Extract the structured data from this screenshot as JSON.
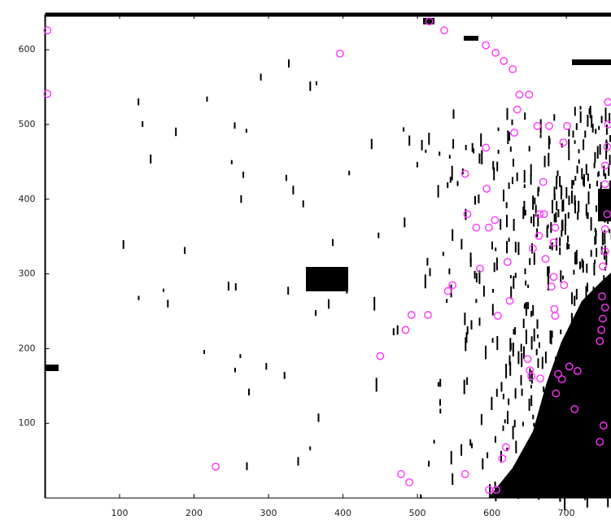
{
  "chart_data": {
    "type": "scatter",
    "color": "#ff33ff",
    "x": [
      3,
      3,
      396,
      516,
      536,
      592,
      605,
      616,
      628,
      637,
      650,
      634,
      661,
      677,
      701,
      630,
      696,
      592,
      564,
      593,
      669,
      567,
      579,
      604,
      596,
      664,
      670,
      685,
      683,
      663,
      655,
      672,
      621,
      584,
      683,
      680,
      697,
      547,
      541,
      624,
      684,
      608,
      685,
      492,
      514,
      484,
      450,
      648,
      651,
      704,
      715,
      653,
      689,
      665,
      694,
      686,
      711,
      750,
      745,
      619,
      614,
      229,
      478,
      489,
      564,
      596,
      606,
      756,
      756,
      755,
      752,
      752,
      755,
      752,
      752,
      749,
      748,
      752,
      749,
      747,
      745
    ],
    "values": [
      626,
      541,
      595,
      638,
      626,
      606,
      596,
      585,
      574,
      540,
      540,
      520,
      498,
      498,
      498,
      489,
      476,
      469,
      434,
      414,
      423,
      380,
      362,
      372,
      362,
      380,
      380,
      362,
      342,
      351,
      334,
      320,
      316,
      307,
      296,
      283,
      285,
      285,
      277,
      264,
      253,
      244,
      244,
      245,
      245,
      225,
      190,
      186,
      171,
      176,
      170,
      163,
      166,
      160,
      159,
      140,
      119,
      97,
      75,
      68,
      53,
      42,
      32,
      21,
      32,
      11,
      11,
      530,
      500,
      470,
      445,
      420,
      380,
      360,
      330,
      310,
      270,
      255,
      240,
      225,
      210
    ],
    "xlim": [
      0,
      760
    ],
    "ylim": [
      0,
      647
    ],
    "xticks": [
      100,
      200,
      300,
      400,
      500,
      600,
      700
    ],
    "yticks": [
      100,
      200,
      300,
      400,
      500,
      600
    ]
  }
}
